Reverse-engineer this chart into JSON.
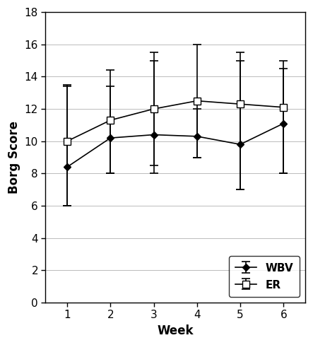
{
  "weeks": [
    1,
    2,
    3,
    4,
    5,
    6
  ],
  "wbv_mean": [
    8.4,
    10.2,
    10.4,
    10.3,
    9.8,
    11.1
  ],
  "wbv_err_low": [
    2.4,
    2.2,
    2.4,
    1.3,
    2.8,
    3.1
  ],
  "wbv_err_high": [
    5.0,
    3.2,
    4.6,
    1.7,
    5.2,
    3.4
  ],
  "er_mean": [
    10.0,
    11.3,
    12.0,
    12.5,
    12.3,
    12.1
  ],
  "er_err_low": [
    4.0,
    3.3,
    3.5,
    3.5,
    5.3,
    4.1
  ],
  "er_err_high": [
    3.5,
    3.1,
    3.5,
    3.5,
    3.2,
    2.9
  ],
  "xlabel": "Week",
  "ylabel": "Borg Score",
  "ylim": [
    0,
    18
  ],
  "yticks": [
    0,
    2,
    4,
    6,
    8,
    10,
    12,
    14,
    16,
    18
  ],
  "xlim": [
    0.5,
    6.5
  ],
  "xticks": [
    1,
    2,
    3,
    4,
    5,
    6
  ],
  "line_color": "#000000",
  "background_color": "#ffffff",
  "grid_color": "#bbbbbb"
}
